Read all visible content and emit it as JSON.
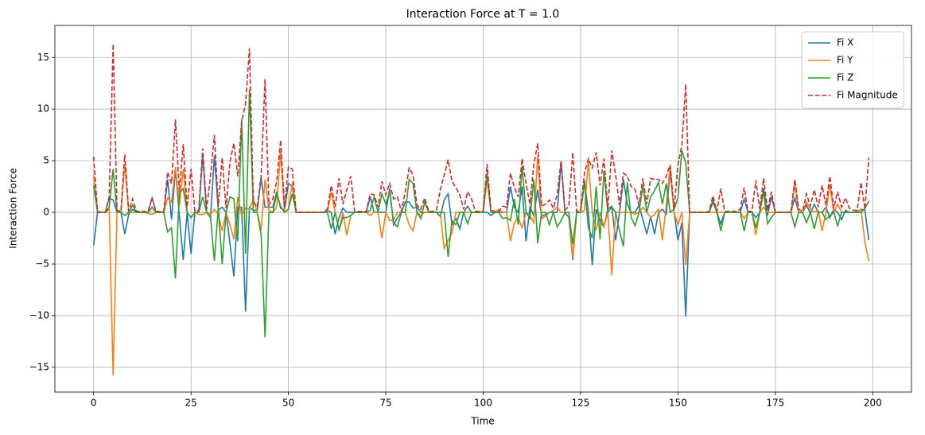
{
  "chart_data": {
    "type": "line",
    "title": "Interaction Force at T = 1.0",
    "xlabel": "Time",
    "ylabel": "Interaction Force",
    "x": [
      0,
      1,
      2,
      3,
      4,
      5,
      6,
      7,
      8,
      9,
      10,
      11,
      12,
      13,
      14,
      15,
      16,
      17,
      18,
      19,
      20,
      21,
      22,
      23,
      24,
      25,
      26,
      27,
      28,
      29,
      30,
      31,
      32,
      33,
      34,
      35,
      36,
      37,
      38,
      39,
      40,
      41,
      42,
      43,
      44,
      45,
      46,
      47,
      48,
      49,
      50,
      51,
      52,
      53,
      54,
      55,
      56,
      57,
      58,
      59,
      60,
      61,
      62,
      63,
      64,
      65,
      66,
      67,
      68,
      69,
      70,
      71,
      72,
      73,
      74,
      75,
      76,
      77,
      78,
      79,
      80,
      81,
      82,
      83,
      84,
      85,
      86,
      87,
      88,
      89,
      90,
      91,
      92,
      93,
      94,
      95,
      96,
      97,
      98,
      99,
      100,
      101,
      102,
      103,
      104,
      105,
      106,
      107,
      108,
      109,
      110,
      111,
      112,
      113,
      114,
      115,
      116,
      117,
      118,
      119,
      120,
      121,
      122,
      123,
      124,
      125,
      126,
      127,
      128,
      129,
      130,
      131,
      132,
      133,
      134,
      135,
      136,
      137,
      138,
      139,
      140,
      141,
      142,
      143,
      144,
      145,
      146,
      147,
      148,
      149,
      150,
      151,
      152,
      153,
      154,
      155,
      156,
      157,
      158,
      159,
      160,
      161,
      162,
      163,
      164,
      165,
      166,
      167,
      168,
      169,
      170,
      171,
      172,
      173,
      174,
      175,
      176,
      177,
      178,
      179,
      180,
      181,
      182,
      183,
      184,
      185,
      186,
      187,
      188,
      189,
      190,
      191,
      192,
      193,
      194,
      195,
      196,
      197,
      198,
      199
    ],
    "series": [
      {
        "name": "Fi X",
        "color": "#1f77b4",
        "linestyle": "solid",
        "values": [
          -3.2,
          0,
          0,
          0,
          1.4,
          1.2,
          0,
          0,
          -2.1,
          -0.2,
          0.3,
          0,
          0,
          0,
          0,
          1.4,
          0,
          0,
          0,
          3.2,
          -0.7,
          4.2,
          -0.3,
          -4.6,
          0,
          -4.0,
          0,
          0,
          5.5,
          0,
          -0.5,
          5.5,
          0.2,
          0.5,
          0,
          -3.0,
          -6.2,
          0.5,
          0.5,
          -9.6,
          0.5,
          0.2,
          0.2,
          3.3,
          0.5,
          0.5,
          0.5,
          2.0,
          0.4,
          0.2,
          2.8,
          2.5,
          0,
          0,
          0,
          0,
          0,
          0,
          0,
          0,
          0.2,
          0,
          -2.1,
          -0.5,
          0.4,
          0,
          0,
          0,
          0,
          0,
          0,
          1.5,
          0,
          0,
          0,
          0,
          2.3,
          -1.2,
          -0.5,
          0,
          1.0,
          1.0,
          0.4,
          0.5,
          0,
          0,
          0,
          0,
          0,
          -0.4,
          1.2,
          1.8,
          -1.2,
          -0.6,
          -1.6,
          0,
          0.6,
          0,
          0,
          0,
          0,
          0,
          -0.3,
          0,
          0,
          0,
          0,
          2.5,
          0.5,
          0,
          2.5,
          -2.8,
          0.5,
          -0.3,
          2.2,
          -0.4,
          -0.2,
          0,
          0,
          0,
          4.9,
          0,
          -0.5,
          -4.6,
          0,
          0,
          3.1,
          0,
          -5.1,
          0.3,
          -0.8,
          -1.4,
          0.3,
          0.6,
          -2.7,
          0,
          3.2,
          0.8,
          0,
          0,
          0.7,
          -0.7,
          -2.1,
          -0.4,
          -2.1,
          0,
          0.3,
          -0.2,
          4.0,
          0.1,
          -2.7,
          -1.0,
          -10.1,
          0,
          0,
          0,
          0,
          0,
          0,
          1.0,
          0,
          -1.1,
          0,
          0,
          0,
          0,
          0,
          1.3,
          0,
          0,
          -0.5,
          0,
          2.3,
          -0.3,
          1.5,
          0,
          0,
          0,
          0,
          0,
          1.4,
          0,
          0,
          0.7,
          -0.1,
          0.8,
          0,
          0,
          0.5,
          -0.5,
          0.3,
          0,
          -0.7,
          0.2,
          0,
          0,
          0.1,
          0.3,
          0.2,
          -2.7
        ]
      },
      {
        "name": "Fi Y",
        "color": "#ff7f0e",
        "linestyle": "solid",
        "values": [
          3.6,
          0,
          0,
          0,
          0.3,
          -15.8,
          0,
          0,
          4.7,
          0,
          0,
          0,
          0,
          0,
          -0.1,
          -0.2,
          0,
          0,
          0,
          1.4,
          1.0,
          4.4,
          0.6,
          4.2,
          0,
          -0.5,
          0,
          -0.2,
          -0.2,
          0,
          -0.2,
          0.3,
          -0.2,
          -1.8,
          0,
          -1.2,
          -2.6,
          1.5,
          -0.3,
          0.4,
          0.3,
          1.3,
          0,
          -1.7,
          3.2,
          0.2,
          0,
          0.5,
          5.9,
          0,
          0.3,
          2.9,
          0,
          0,
          0,
          0,
          0,
          0,
          0,
          0,
          0,
          2.0,
          0,
          -1.7,
          0,
          -2.2,
          -0.3,
          0,
          0,
          0,
          0,
          -0.3,
          0,
          0,
          -2.5,
          0,
          -0.8,
          -0.7,
          0,
          0,
          0,
          -1.2,
          -1.8,
          0,
          -0.3,
          0,
          0,
          0,
          0,
          0,
          -3.5,
          -2.7,
          -2.0,
          0,
          0,
          0,
          0,
          0,
          0,
          0,
          0,
          3.2,
          0,
          0,
          0.3,
          0,
          0,
          -2.8,
          -1.0,
          -0.5,
          -1.5,
          0,
          -0.3,
          -1.0,
          5.5,
          -0.6,
          -0.4,
          0,
          0.2,
          0.5,
          0,
          0,
          0,
          -4.4,
          0,
          0,
          0.2,
          5.0,
          0,
          -1.7,
          0,
          -1.4,
          0,
          -6.1,
          0,
          0,
          0,
          0,
          0,
          -0.2,
          0,
          0.5,
          0,
          -0.5,
          -0.2,
          0.3,
          -2.7,
          0.7,
          4.5,
          0,
          -1.2,
          0,
          -5.1,
          0,
          0,
          0,
          0,
          0,
          0,
          0,
          0,
          0,
          0,
          0,
          0,
          0,
          0,
          -0.6,
          0,
          0,
          -2.2,
          0,
          0.5,
          0,
          0,
          0,
          0,
          0,
          0,
          0,
          2.8,
          0,
          0,
          1.0,
          0.3,
          0,
          0.2,
          -1.8,
          0,
          2.7,
          0,
          0.8,
          0,
          0,
          0,
          0,
          0,
          0.3,
          -2.9,
          -4.7
        ]
      },
      {
        "name": "Fi Z",
        "color": "#2ca02c",
        "linestyle": "solid",
        "values": [
          2.6,
          0,
          0,
          0,
          0.5,
          4.2,
          0,
          0,
          -0.3,
          0,
          0.7,
          0,
          0,
          0,
          0,
          0.5,
          0,
          0,
          0,
          -1.9,
          -1.5,
          -6.4,
          1.9,
          2.3,
          0,
          -0.5,
          0,
          0,
          1.5,
          0,
          -0.5,
          -4.7,
          0.5,
          -5.0,
          0,
          1.5,
          1.3,
          -2.8,
          9.0,
          -4.0,
          11.9,
          0,
          0,
          -2.2,
          -12.1,
          0,
          0,
          1.8,
          0.6,
          0,
          0.3,
          1.8,
          0,
          0,
          0,
          0,
          0,
          0,
          0,
          0,
          0,
          -1.6,
          0,
          -1.7,
          -0.5,
          -0.5,
          -0.3,
          0,
          0,
          0,
          0,
          0.2,
          1.5,
          0,
          1.8,
          0.8,
          2.0,
          -1.0,
          -1.4,
          0,
          0,
          3.2,
          2.8,
          0,
          -0.6,
          1.0,
          0,
          0,
          0,
          0,
          0,
          -4.3,
          -0.8,
          -1.2,
          0,
          0,
          -1.1,
          0,
          0,
          0,
          0,
          3.8,
          0,
          0,
          0,
          -0.6,
          -0.5,
          -0.8,
          1.3,
          -1.2,
          4.5,
          0,
          -0.6,
          3.2,
          -3.0,
          0,
          0,
          -1.2,
          0,
          -1.4,
          -0.8,
          0,
          0,
          -3.1,
          0,
          0,
          2.9,
          -1.5,
          -2.5,
          2.5,
          -2.6,
          4.0,
          0,
          0.5,
          0,
          -1.8,
          -3.3,
          2.9,
          -0.5,
          -1.3,
          0,
          2.6,
          0,
          1.5,
          2.1,
          2.9,
          0.8,
          2.8,
          0,
          0.3,
          1.4,
          6.0,
          4.8,
          0,
          0,
          0,
          0,
          0,
          0,
          1.2,
          0,
          -1.8,
          0,
          0,
          0,
          0,
          0,
          -1.8,
          0,
          0,
          -1.5,
          0,
          2.0,
          -1.1,
          -0.5,
          0,
          0,
          0,
          0,
          0,
          -1.4,
          0,
          0,
          -1.0,
          0,
          -1.6,
          0,
          0,
          -0.7,
          -0.3,
          0,
          -1.3,
          0,
          0,
          0,
          0,
          0,
          0,
          0.4,
          1.1
        ]
      },
      {
        "name": "Fi Magnitude",
        "color": "#d62728",
        "linestyle": "dashed",
        "values": [
          5.4,
          0.1,
          0,
          0,
          1.5,
          16.3,
          0.2,
          0.1,
          5.6,
          0.1,
          1.3,
          0.1,
          0.1,
          0.1,
          0.1,
          1.4,
          0.1,
          0.1,
          0.1,
          3.9,
          2.8,
          9.0,
          2.0,
          6.6,
          0.5,
          4.2,
          0.1,
          0.2,
          6.2,
          0.3,
          3.5,
          7.5,
          0.6,
          5.3,
          0.4,
          4.9,
          6.7,
          3.5,
          8.8,
          10.5,
          15.9,
          1.0,
          0.5,
          3.5,
          12.9,
          0.7,
          1.3,
          3.0,
          7.0,
          0.5,
          4.4,
          4.2,
          0,
          0,
          0,
          0,
          0,
          0,
          0,
          0,
          0.3,
          2.6,
          0.5,
          3.3,
          0.8,
          2.2,
          3.5,
          0.1,
          0.1,
          0.1,
          0.1,
          1.8,
          1.7,
          0.5,
          3.0,
          1.7,
          2.8,
          1.3,
          1.5,
          0.1,
          2.0,
          4.3,
          3.6,
          0.7,
          0.3,
          1.4,
          0.1,
          0.1,
          0.2,
          2.2,
          3.6,
          5.1,
          3.0,
          2.4,
          1.7,
          0.3,
          2.0,
          1.3,
          0.1,
          0.1,
          0.1,
          4.7,
          0.2,
          0.1,
          0.1,
          0.6,
          0.5,
          3.8,
          2.4,
          1.5,
          5.2,
          2.8,
          0.8,
          4.6,
          6.7,
          0.6,
          0.8,
          1.2,
          0.4,
          1.7,
          5.0,
          0.2,
          0.6,
          5.8,
          0.1,
          0.2,
          3.8,
          5.2,
          4.3,
          5.8,
          2.6,
          5.2,
          0.3,
          6.0,
          3.6,
          0.7,
          3.8,
          3.5,
          2.5,
          2.2,
          0.7,
          3.3,
          0.8,
          3.3,
          3.2,
          3.2,
          2.8,
          3.5,
          4.6,
          0.3,
          4.6,
          6.5,
          12.4,
          0,
          0,
          0,
          0,
          0,
          0.1,
          1.6,
          0.1,
          2.3,
          0.1,
          0.1,
          0.1,
          0.1,
          0.3,
          2.4,
          0.1,
          0.1,
          3.1,
          0.3,
          3.3,
          0.2,
          2.0,
          0,
          0,
          0,
          0,
          0,
          3.2,
          0.3,
          0.1,
          1.8,
          0.6,
          2.2,
          0.5,
          2.6,
          0.7,
          3.5,
          0.4,
          2.0,
          0.5,
          1.4,
          0.4,
          0.2,
          0.2,
          2.9,
          0.3,
          5.3
        ]
      }
    ],
    "xlim": [
      -9.95,
      209.95
    ],
    "ylim": [
      -17.4,
      18.1
    ],
    "xticks": [
      0,
      25,
      50,
      75,
      100,
      125,
      150,
      175,
      200
    ],
    "yticks": [
      {
        "value": -15,
        "label": "−15"
      },
      {
        "value": -10,
        "label": "−10"
      },
      {
        "value": -5,
        "label": "−5"
      },
      0,
      5,
      10,
      15
    ],
    "grid": true,
    "legend": "upper right"
  }
}
